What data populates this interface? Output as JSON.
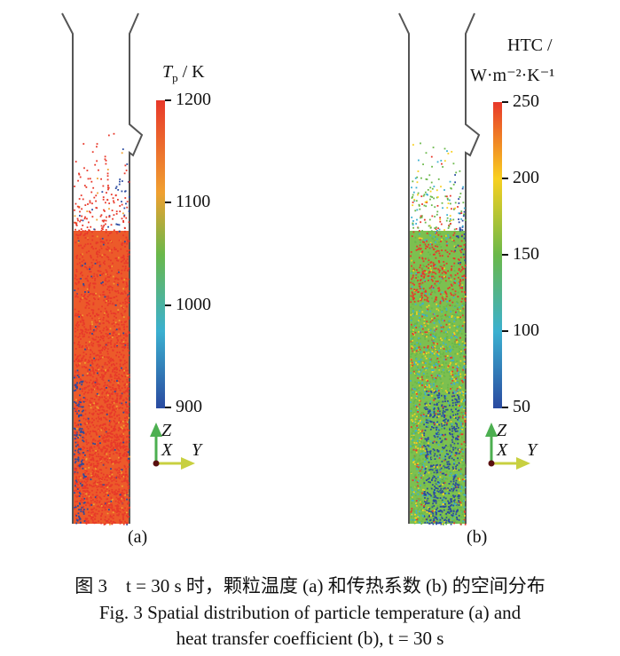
{
  "panel_a": {
    "label": "(a)",
    "colorbar": {
      "title_symbol": "T",
      "title_subscript": "p",
      "title_unit": " / K",
      "ticks": [
        "1200",
        "1100",
        "1000",
        "900"
      ],
      "range": [
        900,
        1200
      ],
      "colors": [
        "#e8382a",
        "#f0a030",
        "#6ab84a",
        "#3bb0d0",
        "#2a4aa0"
      ]
    }
  },
  "panel_b": {
    "label": "(b)",
    "colorbar": {
      "title_line1": "HTC /",
      "title_line2": "W·m⁻²·K⁻¹",
      "ticks": [
        "250",
        "200",
        "150",
        "100",
        "50"
      ],
      "range": [
        50,
        250
      ],
      "colors": [
        "#e8382a",
        "#f8d020",
        "#6ab84a",
        "#3bb0d0",
        "#2a4aa0"
      ]
    }
  },
  "axes": {
    "z": "Z",
    "x": "X",
    "y": "Y"
  },
  "caption": {
    "zh": "图 3　t = 30 s 时，颗粒温度 (a) 和传热系数 (b) 的空间分布",
    "en_line1": "Fig. 3   Spatial distribution of particle temperature (a) and",
    "en_line2": "heat transfer coefficient (b), t = 30 s"
  }
}
